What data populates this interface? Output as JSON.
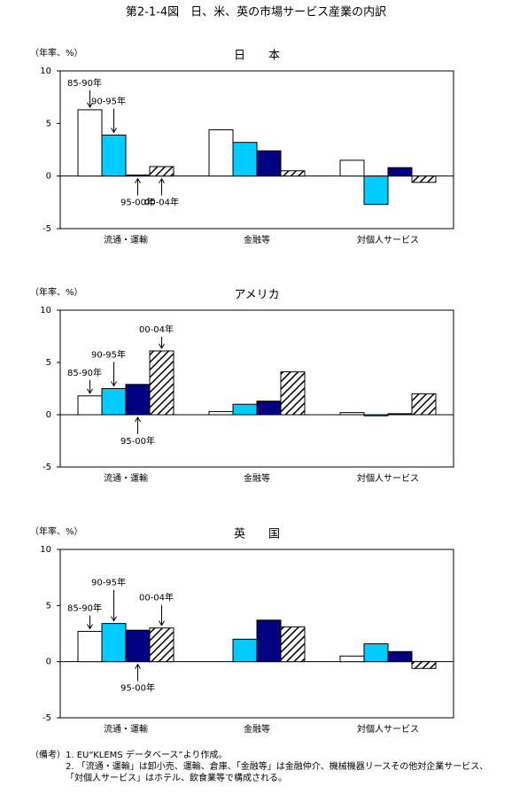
{
  "title": "第2-1-4図　日、米、英の市場サービス産業の内訳",
  "chart_data": [
    {
      "type": "bar",
      "title": "日　　本",
      "y_label": "（年率、%）",
      "categories": [
        "流通・運輸",
        "金融等",
        "対個人サービス"
      ],
      "series": [
        {
          "name": "85-90年",
          "color": "#ffffff",
          "values": [
            6.3,
            4.4,
            1.5
          ]
        },
        {
          "name": "90-95年",
          "color": "#00ccff",
          "values": [
            3.9,
            3.2,
            -2.7
          ]
        },
        {
          "name": "95-00年",
          "color": "#000080",
          "values": [
            0.1,
            2.4,
            0.8
          ]
        },
        {
          "name": "00-04年",
          "color": "#000000",
          "pattern": "hatch",
          "values": [
            0.9,
            0.5,
            -0.6
          ]
        }
      ],
      "ylim": [
        -5,
        10
      ],
      "yticks": [
        -5,
        0,
        5,
        10
      ]
    },
    {
      "type": "bar",
      "title": "アメリカ",
      "y_label": "（年率、%）",
      "categories": [
        "流通・運輸",
        "金融等",
        "対個人サービス"
      ],
      "series": [
        {
          "name": "85-90年",
          "color": "#ffffff",
          "values": [
            1.8,
            0.3,
            0.2
          ]
        },
        {
          "name": "90-95年",
          "color": "#00ccff",
          "values": [
            2.5,
            1.0,
            -0.1
          ]
        },
        {
          "name": "95-00年",
          "color": "#000080",
          "values": [
            2.9,
            1.3,
            0.1
          ]
        },
        {
          "name": "00-04年",
          "color": "#000000",
          "pattern": "hatch",
          "values": [
            6.1,
            4.1,
            2.0
          ]
        }
      ],
      "ylim": [
        -5,
        10
      ],
      "yticks": [
        -5,
        0,
        5,
        10
      ]
    },
    {
      "type": "bar",
      "title": "英　　国",
      "y_label": "（年率、%）",
      "categories": [
        "流通・運輸",
        "金融等",
        "対個人サービス"
      ],
      "series": [
        {
          "name": "85-90年",
          "color": "#ffffff",
          "values": [
            2.7,
            0,
            0.5
          ]
        },
        {
          "name": "90-95年",
          "color": "#00ccff",
          "values": [
            3.4,
            2.0,
            1.6
          ]
        },
        {
          "name": "95-00年",
          "color": "#000080",
          "values": [
            2.8,
            3.7,
            0.9
          ]
        },
        {
          "name": "00-04年",
          "color": "#000000",
          "pattern": "hatch",
          "values": [
            3.0,
            3.1,
            -0.6
          ]
        }
      ],
      "ylim": [
        -5,
        10
      ],
      "yticks": [
        -5,
        0,
        5,
        10
      ]
    }
  ],
  "notes": [
    "（備考）1. EU“KLEMS データベース”より作成。",
    "2. 「流通・運輸」は卸小売、運輸、倉庫、「金融等」は金融仲介、機械機器リースその他対企業サービス、「対個人サービス」はホテル、飲食業等で構成される。"
  ]
}
